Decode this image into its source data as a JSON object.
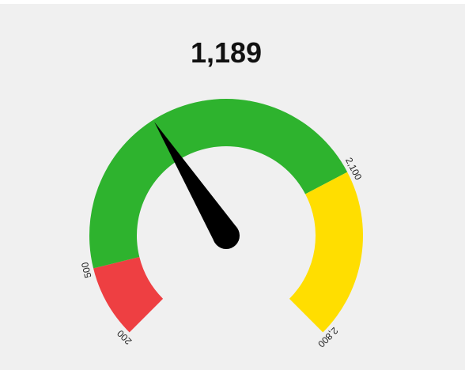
{
  "chart_data": {
    "type": "gauge",
    "value": 1189,
    "value_label": "1,189",
    "min": 200,
    "max": 2800,
    "bands": [
      {
        "from": 200,
        "to": 500,
        "color": "#ee3f42",
        "status": "bad"
      },
      {
        "from": 500,
        "to": 2100,
        "color": "#2eb32e",
        "status": "good"
      },
      {
        "from": 2100,
        "to": 2800,
        "color": "#ffde00",
        "status": "warning"
      }
    ],
    "ticks": [
      {
        "value": 200,
        "label": "200"
      },
      {
        "value": 500,
        "label": "500"
      },
      {
        "value": 2100,
        "label": "2,100"
      },
      {
        "value": 2800,
        "label": "2,800"
      }
    ],
    "needle_color": "#000000"
  }
}
